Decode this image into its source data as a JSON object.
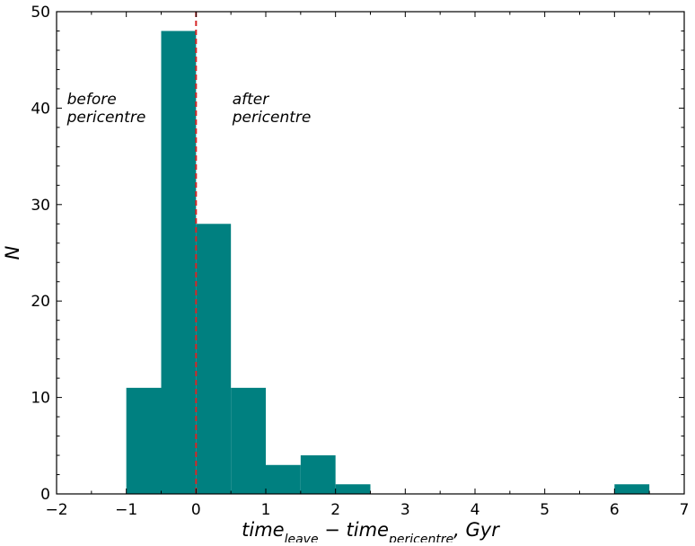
{
  "chart_data": {
    "type": "bar",
    "subtype": "histogram",
    "bins": [
      {
        "x0": -1.0,
        "x1": -0.5,
        "count": 11
      },
      {
        "x0": -0.5,
        "x1": 0.0,
        "count": 48
      },
      {
        "x0": 0.0,
        "x1": 0.5,
        "count": 28
      },
      {
        "x0": 0.5,
        "x1": 1.0,
        "count": 11
      },
      {
        "x0": 1.0,
        "x1": 1.5,
        "count": 3
      },
      {
        "x0": 1.5,
        "x1": 2.0,
        "count": 4
      },
      {
        "x0": 2.0,
        "x1": 2.5,
        "count": 1
      },
      {
        "x0": 6.0,
        "x1": 6.5,
        "count": 1
      }
    ],
    "bar_color": "#008080",
    "reference_line": {
      "x": 0,
      "color": "#d62728",
      "style": "dashed"
    },
    "xlim": [
      -2,
      7
    ],
    "ylim": [
      0,
      50
    ],
    "xticks": [
      -2,
      -1,
      0,
      1,
      2,
      3,
      4,
      5,
      6,
      7
    ],
    "xtick_labels": [
      "−2",
      "−1",
      "0",
      "1",
      "2",
      "3",
      "4",
      "5",
      "6",
      "7"
    ],
    "yticks": [
      0,
      10,
      20,
      30,
      40,
      50
    ],
    "ytick_labels": [
      "0",
      "10",
      "20",
      "30",
      "40",
      "50"
    ],
    "xlabel": {
      "part1": "time",
      "sub1": "leave",
      "minus": " − ",
      "part2": "time",
      "sub2": "pericentre",
      "tail": ", Gyr"
    },
    "ylabel": "N",
    "grid": false,
    "annotations": [
      {
        "lines": [
          "before",
          "pericentre"
        ],
        "x": -1.85,
        "y": 40.4
      },
      {
        "lines": [
          "after",
          "pericentre"
        ],
        "x": 0.52,
        "y": 40.4
      }
    ]
  }
}
